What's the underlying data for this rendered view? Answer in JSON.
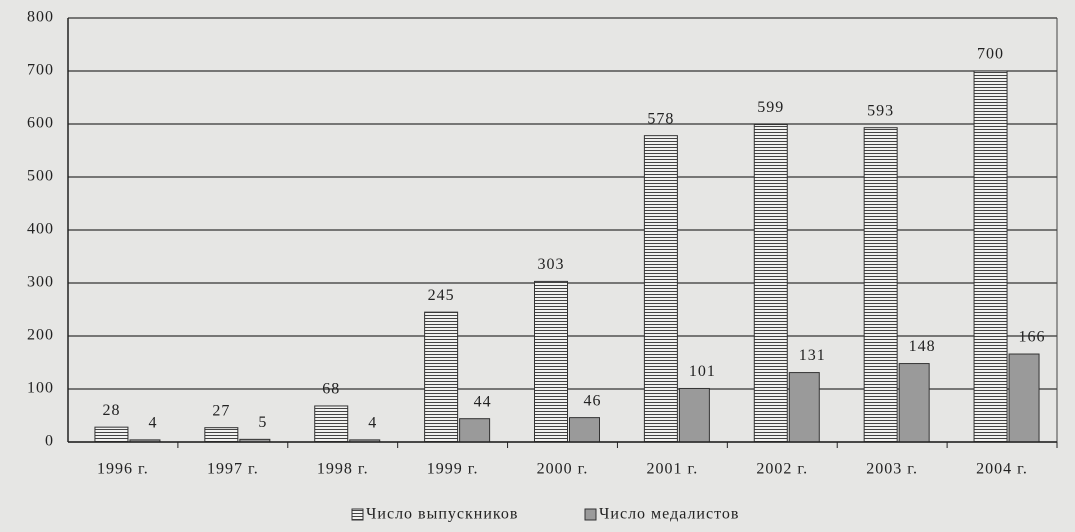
{
  "chart_data": {
    "type": "bar",
    "categories": [
      "1996 г.",
      "1997 г.",
      "1998 г.",
      "1999 г.",
      "2000 г.",
      "2001 г.",
      "2002 г.",
      "2003 г.",
      "2004 г."
    ],
    "series": [
      {
        "name": "Число выпускников",
        "color": "#f2f2f0",
        "values": [
          28,
          27,
          68,
          245,
          303,
          578,
          599,
          593,
          700
        ]
      },
      {
        "name": "Число медалистов",
        "color": "#9a9a9a",
        "values": [
          4,
          5,
          4,
          44,
          46,
          101,
          131,
          148,
          166
        ]
      }
    ],
    "ylim": [
      0,
      800
    ],
    "yticks": [
      0,
      100,
      200,
      300,
      400,
      500,
      600,
      700,
      800
    ],
    "grid": true
  }
}
